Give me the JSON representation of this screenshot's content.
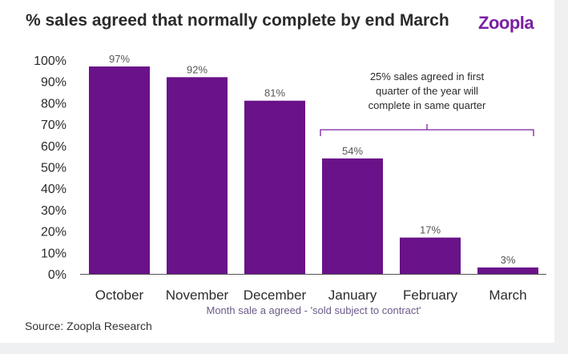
{
  "header": {
    "title": "% sales agreed that normally complete by end March",
    "logo_text": "Zoopla"
  },
  "footer": {
    "source": "Source: Zoopla Research"
  },
  "colors": {
    "bar": "#6a1289",
    "logo": "#7b1fa2",
    "bracket": "#7b1fa2"
  },
  "chart_data": {
    "type": "bar",
    "title": "% sales agreed that normally complete by end March",
    "xlabel": "Month sale a agreed - 'sold subject to contract'",
    "ylabel": "",
    "categories": [
      "October",
      "November",
      "December",
      "January",
      "February",
      "March"
    ],
    "values": [
      97,
      92,
      81,
      54,
      17,
      3
    ],
    "data_labels": [
      "97%",
      "92%",
      "81%",
      "54%",
      "17%",
      "3%"
    ],
    "ylim": [
      0,
      100
    ],
    "y_ticks": [
      0,
      10,
      20,
      30,
      40,
      50,
      60,
      70,
      80,
      90,
      100
    ],
    "y_tick_labels": [
      "0%",
      "10%",
      "20%",
      "30%",
      "40%",
      "50%",
      "60%",
      "70%",
      "80%",
      "90%",
      "100%"
    ],
    "grid": false,
    "legend": "none",
    "annotation": {
      "lines": [
        "25% sales agreed in first",
        "quarter of the year will",
        "complete in same quarter"
      ],
      "spans_categories": [
        "January",
        "March"
      ]
    }
  }
}
